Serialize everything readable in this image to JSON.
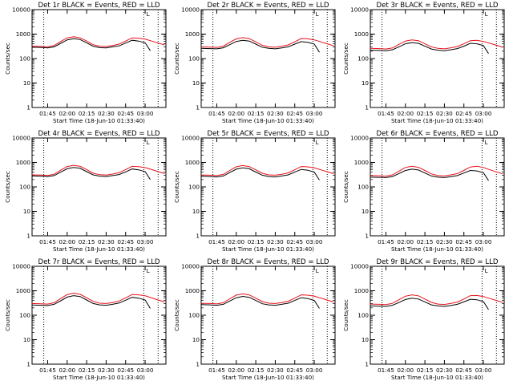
{
  "colors": {
    "events": "#000000",
    "lld": "#e8101a",
    "background": "#ffffff"
  },
  "chart_data": {
    "type": "line",
    "grid": false,
    "y_scale": "log",
    "ylim": [
      1,
      10000
    ],
    "y_ticks": [
      "1",
      "10",
      "100",
      "1000",
      "10000"
    ],
    "xlim": [
      "01:33",
      "03:16"
    ],
    "x_ticks": [
      "01:45",
      "02:00",
      "02:15",
      "02:30",
      "02:45",
      "03:00"
    ],
    "xlabel": "Start Time (18-Jun-10 01:33:40)",
    "ylabel": "Counts/sec",
    "vertical_markers": [
      "01:42",
      "02:59",
      "03:10"
    ],
    "corner_mark": "L",
    "panels": [
      {
        "title": "Det 1r BLACK = Events, RED = LLD",
        "series": [
          {
            "name": "Events",
            "x": [
              "01:33",
              "01:40",
              "01:45",
              "01:50",
              "01:55",
              "02:00",
              "02:05",
              "02:10",
              "02:15",
              "02:20",
              "02:25",
              "02:30",
              "02:35",
              "02:40",
              "02:45",
              "02:50",
              "02:55",
              "03:00",
              "03:04"
            ],
            "y": [
              290,
              285,
              270,
              300,
              420,
              580,
              650,
              600,
              440,
              320,
              280,
              270,
              300,
              330,
              430,
              560,
              520,
              440,
              210
            ]
          },
          {
            "name": "LLD",
            "x": [
              "01:33",
              "01:40",
              "01:45",
              "01:50",
              "01:55",
              "02:00",
              "02:05",
              "02:10",
              "02:15",
              "02:20",
              "02:25",
              "02:30",
              "02:35",
              "02:40",
              "02:45",
              "02:50",
              "02:55",
              "03:00",
              "03:05",
              "03:10",
              "03:15"
            ],
            "y": [
              320,
              310,
              300,
              340,
              500,
              700,
              780,
              700,
              520,
              370,
              320,
              310,
              340,
              390,
              520,
              700,
              680,
              620,
              520,
              430,
              360
            ]
          }
        ]
      },
      {
        "title": "Det 2r BLACK = Events, RED = LLD",
        "series": [
          {
            "name": "Events",
            "x": [
              "01:33",
              "01:40",
              "01:45",
              "01:50",
              "01:55",
              "02:00",
              "02:05",
              "02:10",
              "02:15",
              "02:20",
              "02:25",
              "02:30",
              "02:35",
              "02:40",
              "02:45",
              "02:50",
              "02:55",
              "03:00",
              "03:04"
            ],
            "y": [
              260,
              255,
              250,
              275,
              370,
              500,
              560,
              520,
              390,
              290,
              260,
              250,
              270,
              300,
              390,
              490,
              460,
              390,
              180
            ]
          },
          {
            "name": "LLD",
            "x": [
              "01:33",
              "01:40",
              "01:45",
              "01:50",
              "01:55",
              "02:00",
              "02:05",
              "02:10",
              "02:15",
              "02:20",
              "02:25",
              "02:30",
              "02:35",
              "02:40",
              "02:45",
              "02:50",
              "02:55",
              "03:00",
              "03:05",
              "03:10",
              "03:15"
            ],
            "y": [
              300,
              295,
              285,
              320,
              460,
              640,
              720,
              650,
              480,
              350,
              300,
              290,
              320,
              360,
              480,
              660,
              640,
              580,
              480,
              400,
              330
            ]
          }
        ]
      },
      {
        "title": "Det 3r BLACK = Events, RED = LLD",
        "series": [
          {
            "name": "Events",
            "x": [
              "01:33",
              "01:40",
              "01:45",
              "01:50",
              "01:55",
              "02:00",
              "02:05",
              "02:10",
              "02:15",
              "02:20",
              "02:25",
              "02:30",
              "02:35",
              "02:40",
              "02:45",
              "02:50",
              "02:55",
              "03:00",
              "03:04"
            ],
            "y": [
              220,
              215,
              210,
              230,
              300,
              400,
              450,
              420,
              320,
              245,
              220,
              210,
              230,
              255,
              320,
              420,
              400,
              340,
              160
            ]
          },
          {
            "name": "LLD",
            "x": [
              "01:33",
              "01:40",
              "01:45",
              "01:50",
              "01:55",
              "02:00",
              "02:05",
              "02:10",
              "02:15",
              "02:20",
              "02:25",
              "02:30",
              "02:35",
              "02:40",
              "02:45",
              "02:50",
              "02:55",
              "03:00",
              "03:05",
              "03:10",
              "03:15"
            ],
            "y": [
              260,
              255,
              245,
              270,
              380,
              520,
              580,
              540,
              400,
              300,
              260,
              250,
              275,
              310,
              400,
              540,
              560,
              500,
              420,
              350,
              290
            ]
          }
        ]
      },
      {
        "title": "Det 4r BLACK = Events, RED = LLD",
        "series": [
          {
            "name": "Events",
            "x": [
              "01:33",
              "01:40",
              "01:45",
              "01:50",
              "01:55",
              "02:00",
              "02:05",
              "02:10",
              "02:15",
              "02:20",
              "02:25",
              "02:30",
              "02:35",
              "02:40",
              "02:45",
              "02:50",
              "02:55",
              "03:00",
              "03:04"
            ],
            "y": [
              280,
              275,
              265,
              290,
              400,
              550,
              620,
              570,
              420,
              310,
              275,
              265,
              290,
              320,
              410,
              540,
              500,
              420,
              200
            ]
          },
          {
            "name": "LLD",
            "x": [
              "01:33",
              "01:40",
              "01:45",
              "01:50",
              "01:55",
              "02:00",
              "02:05",
              "02:10",
              "02:15",
              "02:20",
              "02:25",
              "02:30",
              "02:35",
              "02:40",
              "02:45",
              "02:50",
              "02:55",
              "03:00",
              "03:05",
              "03:10",
              "03:15"
            ],
            "y": [
              310,
              305,
              295,
              330,
              480,
              680,
              760,
              690,
              510,
              365,
              315,
              305,
              335,
              380,
              510,
              690,
              670,
              610,
              510,
              420,
              350
            ]
          }
        ]
      },
      {
        "title": "Det 5r BLACK = Events, RED = LLD",
        "series": [
          {
            "name": "Events",
            "x": [
              "01:33",
              "01:40",
              "01:45",
              "01:50",
              "01:55",
              "02:00",
              "02:05",
              "02:10",
              "02:15",
              "02:20",
              "02:25",
              "02:30",
              "02:35",
              "02:40",
              "02:45",
              "02:50",
              "02:55",
              "03:00",
              "03:04"
            ],
            "y": [
              270,
              265,
              255,
              280,
              385,
              530,
              600,
              550,
              405,
              300,
              265,
              255,
              280,
              310,
              400,
              520,
              480,
              400,
              190
            ]
          },
          {
            "name": "LLD",
            "x": [
              "01:33",
              "01:40",
              "01:45",
              "01:50",
              "01:55",
              "02:00",
              "02:05",
              "02:10",
              "02:15",
              "02:20",
              "02:25",
              "02:30",
              "02:35",
              "02:40",
              "02:45",
              "02:50",
              "02:55",
              "03:00",
              "03:05",
              "03:10",
              "03:15"
            ],
            "y": [
              305,
              300,
              290,
              325,
              470,
              665,
              745,
              675,
              500,
              360,
              310,
              300,
              330,
              375,
              500,
              680,
              660,
              600,
              500,
              415,
              345
            ]
          }
        ]
      },
      {
        "title": "Det 6r BLACK = Events, RED = LLD",
        "series": [
          {
            "name": "Events",
            "x": [
              "01:33",
              "01:40",
              "01:45",
              "01:50",
              "01:55",
              "02:00",
              "02:05",
              "02:10",
              "02:15",
              "02:20",
              "02:25",
              "02:30",
              "02:35",
              "02:40",
              "02:45",
              "02:50",
              "02:55",
              "03:00",
              "03:04"
            ],
            "y": [
              250,
              245,
              240,
              265,
              350,
              470,
              530,
              490,
              370,
              280,
              250,
              240,
              260,
              290,
              370,
              470,
              450,
              380,
              180
            ]
          },
          {
            "name": "LLD",
            "x": [
              "01:33",
              "01:40",
              "01:45",
              "01:50",
              "01:55",
              "02:00",
              "02:05",
              "02:10",
              "02:15",
              "02:20",
              "02:25",
              "02:30",
              "02:35",
              "02:40",
              "02:45",
              "02:50",
              "02:55",
              "03:00",
              "03:05",
              "03:10",
              "03:15"
            ],
            "y": [
              290,
              285,
              275,
              310,
              440,
              620,
              700,
              630,
              470,
              340,
              290,
              280,
              310,
              350,
              470,
              650,
              700,
              620,
              500,
              410,
              340
            ]
          }
        ]
      },
      {
        "title": "Det 7r BLACK = Events, RED = LLD",
        "series": [
          {
            "name": "Events",
            "x": [
              "01:33",
              "01:40",
              "01:45",
              "01:50",
              "01:55",
              "02:00",
              "02:05",
              "02:10",
              "02:15",
              "02:20",
              "02:25",
              "02:30",
              "02:35",
              "02:40",
              "02:45",
              "02:50",
              "02:55",
              "03:00",
              "03:04"
            ],
            "y": [
              260,
              255,
              250,
              280,
              390,
              550,
              630,
              580,
              420,
              300,
              265,
              255,
              280,
              315,
              410,
              540,
              500,
              420,
              190
            ]
          },
          {
            "name": "LLD",
            "x": [
              "01:33",
              "01:40",
              "01:45",
              "01:50",
              "01:55",
              "02:00",
              "02:05",
              "02:10",
              "02:15",
              "02:20",
              "02:25",
              "02:30",
              "02:35",
              "02:40",
              "02:45",
              "02:50",
              "02:55",
              "03:00",
              "03:05",
              "03:10",
              "03:15"
            ],
            "y": [
              300,
              295,
              285,
              325,
              480,
              700,
              800,
              720,
              520,
              370,
              310,
              300,
              330,
              380,
              510,
              700,
              680,
              620,
              510,
              420,
              350
            ]
          }
        ]
      },
      {
        "title": "Det 8r BLACK = Events, RED = LLD",
        "series": [
          {
            "name": "Events",
            "x": [
              "01:33",
              "01:40",
              "01:45",
              "01:50",
              "01:55",
              "02:00",
              "02:05",
              "02:10",
              "02:15",
              "02:20",
              "02:25",
              "02:30",
              "02:35",
              "02:40",
              "02:45",
              "02:50",
              "02:55",
              "03:00",
              "03:04"
            ],
            "y": [
              270,
              265,
              255,
              280,
              380,
              520,
              590,
              540,
              400,
              295,
              265,
              255,
              280,
              310,
              400,
              520,
              480,
              400,
              190
            ]
          },
          {
            "name": "LLD",
            "x": [
              "01:33",
              "01:40",
              "01:45",
              "01:50",
              "01:55",
              "02:00",
              "02:05",
              "02:10",
              "02:15",
              "02:20",
              "02:25",
              "02:30",
              "02:35",
              "02:40",
              "02:45",
              "02:50",
              "02:55",
              "03:00",
              "03:05",
              "03:10",
              "03:15"
            ],
            "y": [
              305,
              300,
              290,
              325,
              470,
              665,
              745,
              675,
              500,
              360,
              310,
              300,
              330,
              375,
              500,
              680,
              660,
              600,
              500,
              415,
              345
            ]
          }
        ]
      },
      {
        "title": "Det 9r BLACK = Events, RED = LLD",
        "series": [
          {
            "name": "Events",
            "x": [
              "01:33",
              "01:40",
              "01:45",
              "01:50",
              "01:55",
              "02:00",
              "02:05",
              "02:10",
              "02:15",
              "02:20",
              "02:25",
              "02:30",
              "02:35",
              "02:40",
              "02:45",
              "02:50",
              "02:55",
              "03:00",
              "03:04"
            ],
            "y": [
              240,
              235,
              230,
              255,
              330,
              440,
              500,
              460,
              350,
              265,
              240,
              230,
              250,
              280,
              350,
              450,
              430,
              360,
              170
            ]
          },
          {
            "name": "LLD",
            "x": [
              "01:33",
              "01:40",
              "01:45",
              "01:50",
              "01:55",
              "02:00",
              "02:05",
              "02:10",
              "02:15",
              "02:20",
              "02:25",
              "02:30",
              "02:35",
              "02:40",
              "02:45",
              "02:50",
              "02:55",
              "03:00",
              "03:05",
              "03:10",
              "03:15"
            ],
            "y": [
              285,
              280,
              270,
              305,
              430,
              600,
              680,
              620,
              460,
              335,
              285,
              275,
              305,
              345,
              460,
              630,
              640,
              580,
              480,
              400,
              330
            ]
          }
        ]
      }
    ]
  }
}
